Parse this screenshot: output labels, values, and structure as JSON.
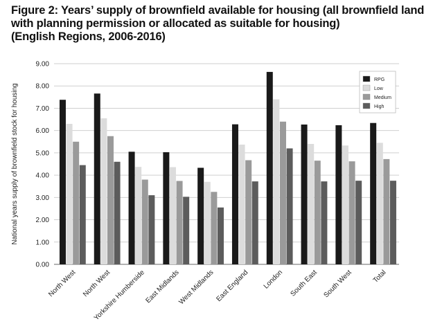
{
  "header": {
    "title_lines": [
      "Figure 2: Years’ supply of brownfield available for housing (all brownfield land",
      "with planning permission or allocated as suitable for housing)",
      "(English Regions, 2006-2016)"
    ]
  },
  "chart_data": {
    "type": "bar",
    "title": "Figure 2: Years’ supply of brownfield available for housing (all brownfield land with planning permission or allocated as suitable for housing) (English Regions, 2006-2016)",
    "ylabel": "National years supply of brownfield stock for housing",
    "xlabel": "",
    "ylim": [
      0,
      9
    ],
    "yticks": [
      "0.00",
      "1.00",
      "2.00",
      "3.00",
      "4.00",
      "5.00",
      "6.00",
      "7.00",
      "8.00",
      "9.00"
    ],
    "grid": "horizontal",
    "legend_position": "top-right",
    "categories": [
      "North West",
      "North West",
      "Yorkshire Humberside",
      "East Midlands",
      "West Midlands",
      "East England",
      "London",
      "South East",
      "South West",
      "Total"
    ],
    "series": [
      {
        "name": "RPG",
        "color": "#1a1a1a",
        "values": [
          7.38,
          7.66,
          5.05,
          5.03,
          4.33,
          6.28,
          8.63,
          6.27,
          6.24,
          6.34
        ]
      },
      {
        "name": "Low",
        "color": "#dcdcdc",
        "values": [
          6.3,
          6.55,
          4.37,
          4.36,
          3.7,
          5.37,
          7.4,
          5.4,
          5.33,
          5.45
        ]
      },
      {
        "name": "Medium",
        "color": "#9a9a9a",
        "values": [
          5.5,
          5.75,
          3.8,
          3.74,
          3.25,
          4.67,
          6.4,
          4.65,
          4.62,
          4.72
        ]
      },
      {
        "name": "High",
        "color": "#5c5c5c",
        "values": [
          4.45,
          4.6,
          3.1,
          3.03,
          2.55,
          3.72,
          5.2,
          3.72,
          3.75,
          3.75
        ]
      }
    ]
  }
}
